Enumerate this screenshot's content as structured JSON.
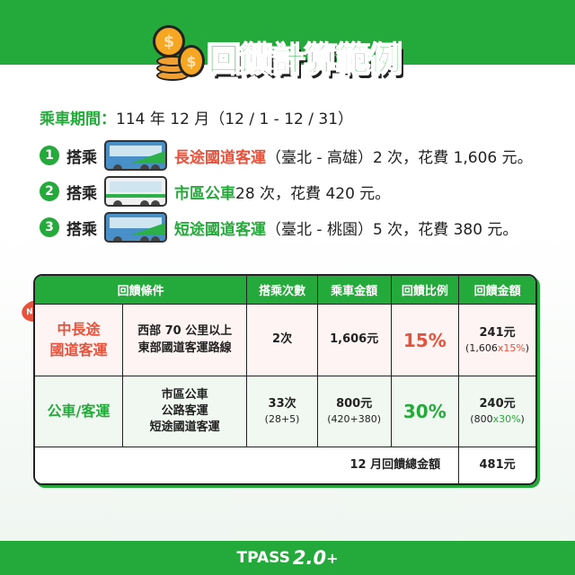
{
  "header": {
    "title": "回饋計算範例",
    "coin_symbol": "$"
  },
  "period": {
    "label": "乘車期間：",
    "value": "114 年 12 月（12 / 1 - 12 / 31）"
  },
  "trips": [
    {
      "num": "1",
      "prefix": "搭乘",
      "mode": "長途國道客運",
      "detail": "（臺北 - 高雄）2 次，花費 1,606 元。",
      "color": "#e8523b",
      "bus_icon": "highway-bus-icon"
    },
    {
      "num": "2",
      "prefix": "搭乘",
      "mode": "市區公車",
      "detail": " 28 次，花費 420 元。",
      "color": "#24aa3a",
      "bus_icon": "city-bus-icon"
    },
    {
      "num": "3",
      "prefix": "搭乘",
      "mode": "短途國道客運",
      "detail": "（臺北 - 桃園）5 次，花費 380 元。",
      "color": "#24aa3a",
      "bus_icon": "highway-bus-icon"
    }
  ],
  "table": {
    "headers": [
      "回饋條件",
      "搭乘次數",
      "乘車金額",
      "回饋比例",
      "回饋金額"
    ],
    "badge": "NEW",
    "rows": [
      {
        "category": "中長途\n國道客運",
        "conditions": [
          "西部 70 公里以上",
          "東部國道客運路線"
        ],
        "rides": "2次",
        "rides_sub": "",
        "amount": "1,606元",
        "amount_sub": "",
        "rate": "15%",
        "rebate": "241元",
        "rebate_sub_a": "(1,606",
        "rebate_sub_b": "x15%",
        "rebate_sub_c": ")"
      },
      {
        "category": "公車/客運",
        "conditions": [
          "市區公車",
          "公路客運",
          "短途國道客運"
        ],
        "rides": "33次",
        "rides_sub": "(28+5)",
        "amount": "800元",
        "amount_sub": "(420+380)",
        "rate": "30%",
        "rebate": "240元",
        "rebate_sub_a": "(800",
        "rebate_sub_b": "x30%",
        "rebate_sub_c": ")"
      }
    ],
    "total_label": "12 月回饋總金額",
    "total_value": "481元"
  },
  "footer": {
    "brand": "TPASS",
    "version": "2.0",
    "plus": "+"
  },
  "colors": {
    "green": "#24aa3a",
    "red": "#e8523b"
  }
}
